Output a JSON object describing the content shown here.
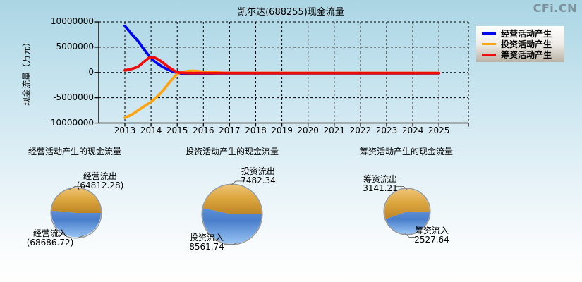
{
  "header": {
    "title": "凯尔达(688255)现金流量",
    "watermark": "CFi.CN"
  },
  "line_chart": {
    "y_axis_label": "现金流量（万元）",
    "y_ticks": [
      "10000000",
      "5000000",
      "0",
      "-5000000",
      "-10000000"
    ],
    "x_ticks": [
      "2013",
      "2014",
      "2015",
      "2016",
      "2017",
      "2018",
      "2019",
      "2020",
      "2021",
      "2022",
      "2023",
      "2024",
      "2025"
    ],
    "legend": {
      "items": [
        {
          "label": "经营活动产生",
          "color": "#0008ee"
        },
        {
          "label": "投资活动产生",
          "color": "#ffa514"
        },
        {
          "label": "筹资活动产生",
          "color": "#ee0d0d"
        }
      ]
    }
  },
  "pies": [
    {
      "title": "经营活动产生的现金流量",
      "out_label": "经营流出",
      "out_value": "(64812.28)",
      "in_label": "经营流入",
      "in_value": "(68686.72)"
    },
    {
      "title": "投资活动产生的现金流量",
      "out_label": "投资流出",
      "out_value": "7482.34",
      "in_label": "投资流入",
      "in_value": "8561.74"
    },
    {
      "title": "筹资活动产生的现金流量",
      "out_label": "筹资流出",
      "out_value": "3141.21",
      "in_label": "筹资流入",
      "in_value": "2527.64"
    }
  ],
  "chart_data": [
    {
      "type": "line",
      "title": "凯尔达(688255)现金流量",
      "ylabel": "现金流量（万元）",
      "unit": "万元",
      "grid": true,
      "legend_position": "right",
      "xlim": [
        2013,
        2025
      ],
      "ylim": [
        -10000000,
        10000000
      ],
      "y_ticks": [
        10000000,
        5000000,
        0,
        -5000000,
        -10000000
      ],
      "x_ticks": [
        2013,
        2014,
        2015,
        2016,
        2017,
        2018,
        2019,
        2020,
        2021,
        2022,
        2023,
        2024,
        2025
      ],
      "series": [
        {
          "name": "经营活动产生",
          "color": "#0008ee",
          "points": [
            [
              2013,
              9200000
            ],
            [
              2013.25,
              7650000
            ],
            [
              2013.5,
              6200000
            ],
            [
              2013.75,
              4450000
            ],
            [
              2014,
              2850000
            ],
            [
              2014.25,
              1750000
            ],
            [
              2014.5,
              950000
            ],
            [
              2014.75,
              380000
            ],
            [
              2015,
              -60000
            ],
            [
              2015.25,
              -280000
            ],
            [
              2015.5,
              -300000
            ],
            [
              2015.75,
              -250000
            ],
            [
              2016,
              -200000
            ],
            [
              2016.5,
              -170000
            ],
            [
              2017,
              -170000
            ],
            [
              2018,
              -170000
            ],
            [
              2019,
              -170000
            ],
            [
              2020,
              -170000
            ],
            [
              2021,
              -170000
            ],
            [
              2022,
              -170000
            ],
            [
              2023,
              -170000
            ],
            [
              2024,
              -170000
            ],
            [
              2025,
              -170000
            ]
          ]
        },
        {
          "name": "投资活动产生",
          "color": "#ffa514",
          "points": [
            [
              2013,
              -8950000
            ],
            [
              2013.25,
              -8350000
            ],
            [
              2013.5,
              -7500000
            ],
            [
              2013.75,
              -6650000
            ],
            [
              2014,
              -5800000
            ],
            [
              2014.25,
              -4700000
            ],
            [
              2014.5,
              -3300000
            ],
            [
              2014.75,
              -1700000
            ],
            [
              2015,
              -350000
            ],
            [
              2015.25,
              120000
            ],
            [
              2015.5,
              300000
            ],
            [
              2015.75,
              280000
            ],
            [
              2016,
              140000
            ],
            [
              2016.5,
              -20000
            ],
            [
              2017,
              -130000
            ],
            [
              2018,
              -130000
            ],
            [
              2019,
              -130000
            ],
            [
              2020,
              -130000
            ],
            [
              2021,
              -130000
            ],
            [
              2022,
              -130000
            ],
            [
              2023,
              -130000
            ],
            [
              2024,
              -130000
            ],
            [
              2025,
              -130000
            ]
          ]
        },
        {
          "name": "筹资活动产生",
          "color": "#ee0d0d",
          "points": [
            [
              2013,
              420000
            ],
            [
              2013.25,
              700000
            ],
            [
              2013.5,
              1150000
            ],
            [
              2013.75,
              2200000
            ],
            [
              2014,
              3050000
            ],
            [
              2014.25,
              2650000
            ],
            [
              2014.5,
              1750000
            ],
            [
              2014.75,
              800000
            ],
            [
              2015,
              60000
            ],
            [
              2015.25,
              -90000
            ],
            [
              2015.5,
              -130000
            ],
            [
              2015.75,
              -130000
            ],
            [
              2016,
              -130000
            ],
            [
              2017,
              -130000
            ],
            [
              2018,
              -130000
            ],
            [
              2019,
              -130000
            ],
            [
              2020,
              -130000
            ],
            [
              2021,
              -130000
            ],
            [
              2022,
              -130000
            ],
            [
              2023,
              -130000
            ],
            [
              2024,
              -130000
            ],
            [
              2025,
              -130000
            ]
          ]
        }
      ]
    },
    {
      "type": "pie",
      "title": "经营活动产生的现金流量",
      "slices": [
        {
          "label": "经营流出",
          "value": 64812.28,
          "color": "#d89b35"
        },
        {
          "label": "经营流入",
          "value": 68686.72,
          "color": "#5b8fd9"
        }
      ]
    },
    {
      "type": "pie",
      "title": "投资活动产生的现金流量",
      "slices": [
        {
          "label": "投资流出",
          "value": 7482.34,
          "color": "#d89b35"
        },
        {
          "label": "投资流入",
          "value": 8561.74,
          "color": "#5b8fd9"
        }
      ]
    },
    {
      "type": "pie",
      "title": "筹资活动产生的现金流量",
      "slices": [
        {
          "label": "筹资流出",
          "value": 3141.21,
          "color": "#d89b35"
        },
        {
          "label": "筹资流入",
          "value": 2527.64,
          "color": "#5b8fd9"
        }
      ]
    }
  ]
}
